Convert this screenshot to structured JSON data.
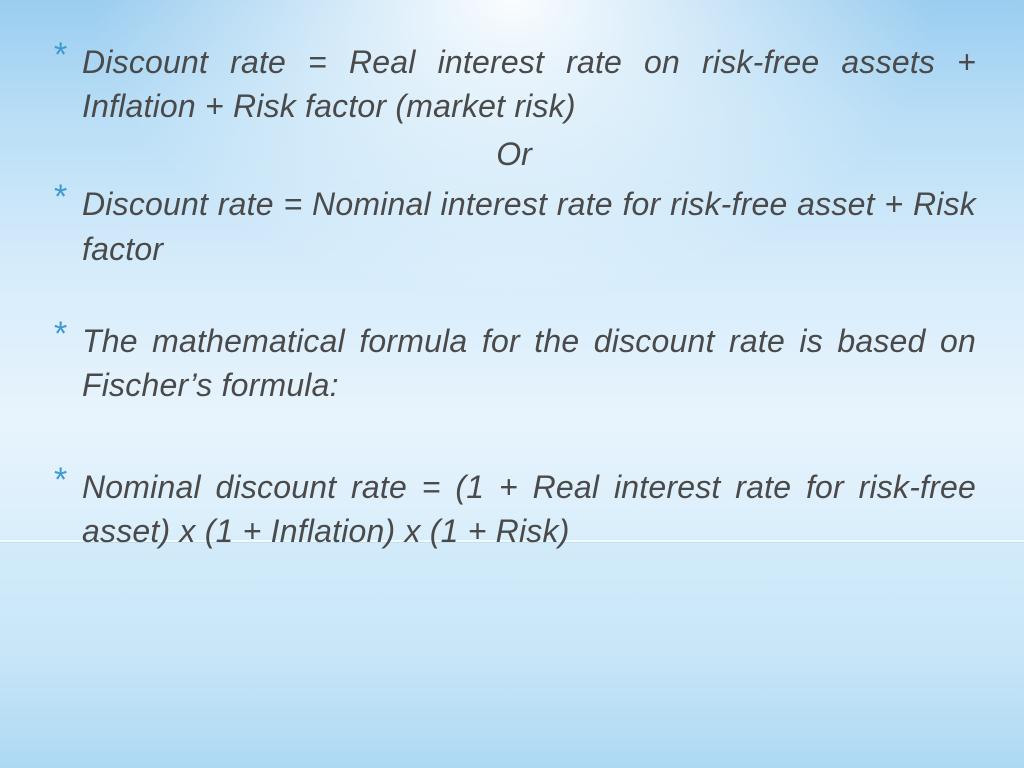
{
  "slide": {
    "bullets": [
      "Discount rate = Real interest rate on risk-free assets + Inflation + Risk factor (market risk)",
      "Discount rate = Nominal interest rate for risk-free asset + Risk factor",
      "The mathematical formula for the discount rate is based on Fischer’s formula:",
      "Nominal discount rate = (1 + Real interest rate for risk-free asset) x (1 + Inflation) x (1 + Risk)"
    ],
    "or_label": "Or"
  },
  "style": {
    "text_color": "#4a4a4a",
    "bullet_color": "#3d9ad1",
    "font_size_pt": 24,
    "bg_gradient_top": "#9acdf0",
    "bg_gradient_mid": "#e8f4fd",
    "bg_gradient_bottom": "#add9f3",
    "highlight_center": "#ffffff"
  }
}
